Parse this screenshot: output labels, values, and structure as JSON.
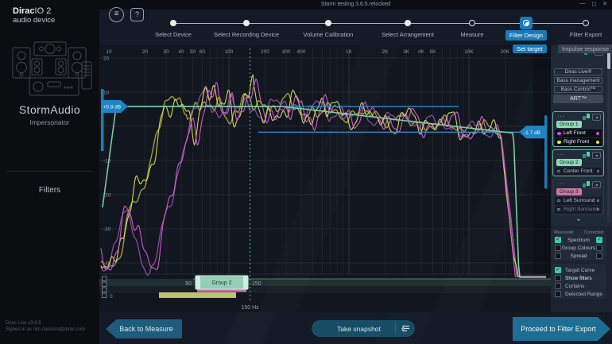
{
  "window": {
    "title": "Storm testing 3.6.5.relocked",
    "minimize": "—",
    "maximize": "◻",
    "close": "✕"
  },
  "toolbar": {
    "menu_glyph": "≡",
    "help_glyph": "?"
  },
  "sidebar": {
    "logo_bold": "Dirac",
    "logo_rest": "IO 2",
    "logo_sub": "audio device",
    "device_name": "StormAudio",
    "device_sub": "Impersonator",
    "menu_filters": "Filters",
    "version": "Dirac Live v3.6.5",
    "signed_in": "Signed in as nilo.casimiro@dirac.com"
  },
  "stepper": {
    "steps": [
      {
        "label": "Select Device",
        "state": "done"
      },
      {
        "label": "Select Recording Device",
        "state": "done"
      },
      {
        "label": "Volume Calibration",
        "state": "done"
      },
      {
        "label": "Select Arrangement",
        "state": "done"
      },
      {
        "label": "Measure",
        "state": "open"
      },
      {
        "label": "Filter Design",
        "state": "current"
      },
      {
        "label": "Filter Export",
        "state": "open"
      }
    ],
    "subtabs": [
      {
        "label": "Set target",
        "active": true
      },
      {
        "label": "Impulse response",
        "active": false
      }
    ]
  },
  "chart": {
    "freq_ticks": [
      {
        "f": 10,
        "label": "10"
      },
      {
        "f": 20,
        "label": "20"
      },
      {
        "f": 30,
        "label": "30"
      },
      {
        "f": 40,
        "label": "40"
      },
      {
        "f": 50,
        "label": "50"
      },
      {
        "f": 60,
        "label": "60"
      },
      {
        "f": 100,
        "label": "100"
      },
      {
        "f": 200,
        "label": "200"
      },
      {
        "f": 300,
        "label": "300"
      },
      {
        "f": 400,
        "label": "400"
      },
      {
        "f": 1000,
        "label": "1K"
      },
      {
        "f": 2000,
        "label": "2K"
      },
      {
        "f": 3000,
        "label": "3K"
      },
      {
        "f": 4000,
        "label": "4K"
      },
      {
        "f": 5000,
        "label": "5K"
      },
      {
        "f": 10000,
        "label": "10K"
      },
      {
        "f": 20000,
        "label": "20K"
      }
    ],
    "db_ticks": [
      {
        "db": 20,
        "label": "20"
      },
      {
        "db": 10,
        "label": "10"
      },
      {
        "db": -10,
        "label": "-10"
      },
      {
        "db": -20,
        "label": "-20"
      },
      {
        "db": -30,
        "label": "-30"
      },
      {
        "db": -40,
        "label": "-40"
      }
    ],
    "handles": {
      "left_label": "+5.8 dB",
      "left_db": 5.8,
      "right_label": "-1.7 dB",
      "right_db": -1.7
    },
    "cursor": {
      "f": 150,
      "label": "150 Hz"
    },
    "target_color": "#7fcaa4",
    "guide_color": "#2b93d6",
    "flag_color": "#1f86c5",
    "series": [
      {
        "name": "Right Front corrected",
        "color": "#9b9d3e",
        "width": 1.5,
        "fc": 29,
        "seed": 11,
        "noise": 0.55,
        "bump": 8
      },
      {
        "name": "Left Front corrected",
        "color": "#8e4fa8",
        "width": 1.3,
        "fc": 52,
        "seed": 5,
        "noise": 0.6,
        "bump": 15
      },
      {
        "name": "Right Front measured",
        "color": "#dede5a",
        "width": 1.1,
        "fc": 29,
        "seed": 7,
        "noise": 1.0,
        "bump": 8
      },
      {
        "name": "Left Front measured",
        "color": "#d85fd8",
        "width": 1.1,
        "fc": 52,
        "seed": 3,
        "noise": 1.0,
        "bump": 15
      }
    ]
  },
  "band": {
    "left_value": "50",
    "right_value": "150",
    "slider_label": "Group 2",
    "zero_label": "0",
    "cursor_label": "150 Hz"
  },
  "panel": {
    "master_items": [
      "Dirac Live®",
      "Bass management",
      "Bass Control™"
    ],
    "art": {
      "label": "ART™",
      "checked": true,
      "check_glyph": "✓"
    },
    "groups": [
      {
        "menu": "...",
        "badge": "Group 1",
        "badge_color": "#8fd8b6",
        "selected": true,
        "channels": [
          {
            "name": "Left Front",
            "dot": "#e23de2",
            "filled": true
          },
          {
            "name": "Right Front",
            "dot": "#e8e840",
            "filled": true
          }
        ]
      },
      {
        "menu": "...",
        "badge": "Group 2",
        "badge_color": "#8fd8b6",
        "selected": true,
        "channels": [
          {
            "name": "Center Front",
            "filled": false
          }
        ]
      },
      {
        "menu": "...",
        "badge": "Group 3",
        "badge_color": "#cb76a4",
        "selected": false,
        "channels": [
          {
            "name": "Left Surround",
            "filled": false
          },
          {
            "name": "Right Surround",
            "filled": false,
            "dim": true
          }
        ]
      }
    ],
    "columns": {
      "measured": "Measured",
      "corrected": "Corrected"
    },
    "spectrum_rows": [
      {
        "label": "Spectrum",
        "measured": true,
        "corrected": true
      },
      {
        "label": "Group Colours",
        "measured": false,
        "corrected": false
      },
      {
        "label": "Spread",
        "measured": false,
        "corrected": false
      }
    ],
    "display_rows": [
      {
        "label": "Target Curve",
        "checked": true,
        "bright": false
      },
      {
        "label": "Show filters",
        "checked": false,
        "bright": true
      },
      {
        "label": "Curtains",
        "checked": false,
        "bright": false
      },
      {
        "label": "Detected Range",
        "checked": false,
        "bright": false
      }
    ]
  },
  "footer": {
    "back": "Back to Measure",
    "snapshot": "Take snapshot",
    "proceed": "Proceed to Filter Export"
  }
}
